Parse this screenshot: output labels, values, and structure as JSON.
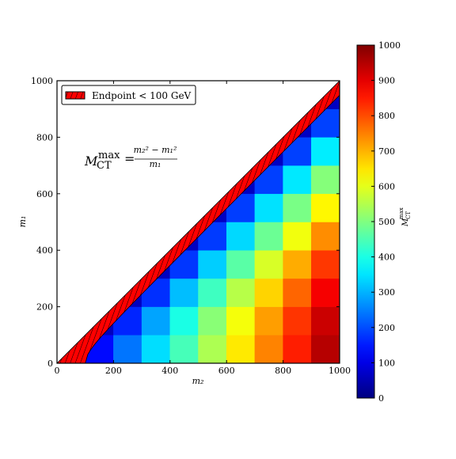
{
  "chart_data": {
    "type": "heatmap",
    "xlabel": "m₂",
    "ylabel": "m₁",
    "annotation": {
      "lhs": "M",
      "lhs_sub": "CT",
      "lhs_sup": "max",
      "eq": "=",
      "numerator": "m₂² − m₁²",
      "denominator": "m₁"
    },
    "x": [
      50,
      150,
      250,
      350,
      450,
      550,
      650,
      750,
      850,
      950
    ],
    "y": [
      50,
      150,
      250,
      350,
      450,
      550,
      650,
      750,
      850,
      950
    ],
    "z": [
      [
        50,
        133,
        240,
        343,
        444,
        545,
        646,
        747,
        847,
        947
      ],
      [
        null,
        60,
        160,
        286,
        400,
        509,
        615,
        720,
        824,
        926
      ],
      [
        null,
        null,
        63,
        171,
        311,
        436,
        554,
        667,
        776,
        884
      ],
      [
        null,
        null,
        null,
        64,
        178,
        327,
        462,
        587,
        706,
        821
      ],
      [
        null,
        null,
        null,
        null,
        64,
        182,
        338,
        480,
        612,
        737
      ],
      [
        null,
        null,
        null,
        null,
        null,
        65,
        185,
        347,
        494,
        632
      ],
      [
        null,
        null,
        null,
        null,
        null,
        null,
        65,
        187,
        353,
        505
      ],
      [
        null,
        null,
        null,
        null,
        null,
        null,
        null,
        65,
        188,
        358
      ],
      [
        null,
        null,
        null,
        null,
        null,
        null,
        null,
        null,
        65,
        189
      ],
      [
        null,
        null,
        null,
        null,
        null,
        null,
        null,
        null,
        null,
        66
      ]
    ],
    "xlim": [
      0,
      1000
    ],
    "ylim": [
      0,
      1000
    ],
    "xticks": [
      0,
      200,
      400,
      600,
      800,
      1000
    ],
    "yticks": [
      0,
      200,
      400,
      600,
      800,
      1000
    ],
    "colormap": "jet",
    "clim": [
      0,
      1000
    ],
    "cbticks": [
      0,
      100,
      200,
      300,
      400,
      500,
      600,
      700,
      800,
      900,
      1000
    ],
    "cblabel": {
      "main": "M",
      "sub": "CT",
      "sup": "max"
    },
    "hatch": {
      "label": "Endpoint < 100 GeV",
      "threshold": 100,
      "color": "#ff0000"
    },
    "legend_loc": "upper left"
  }
}
